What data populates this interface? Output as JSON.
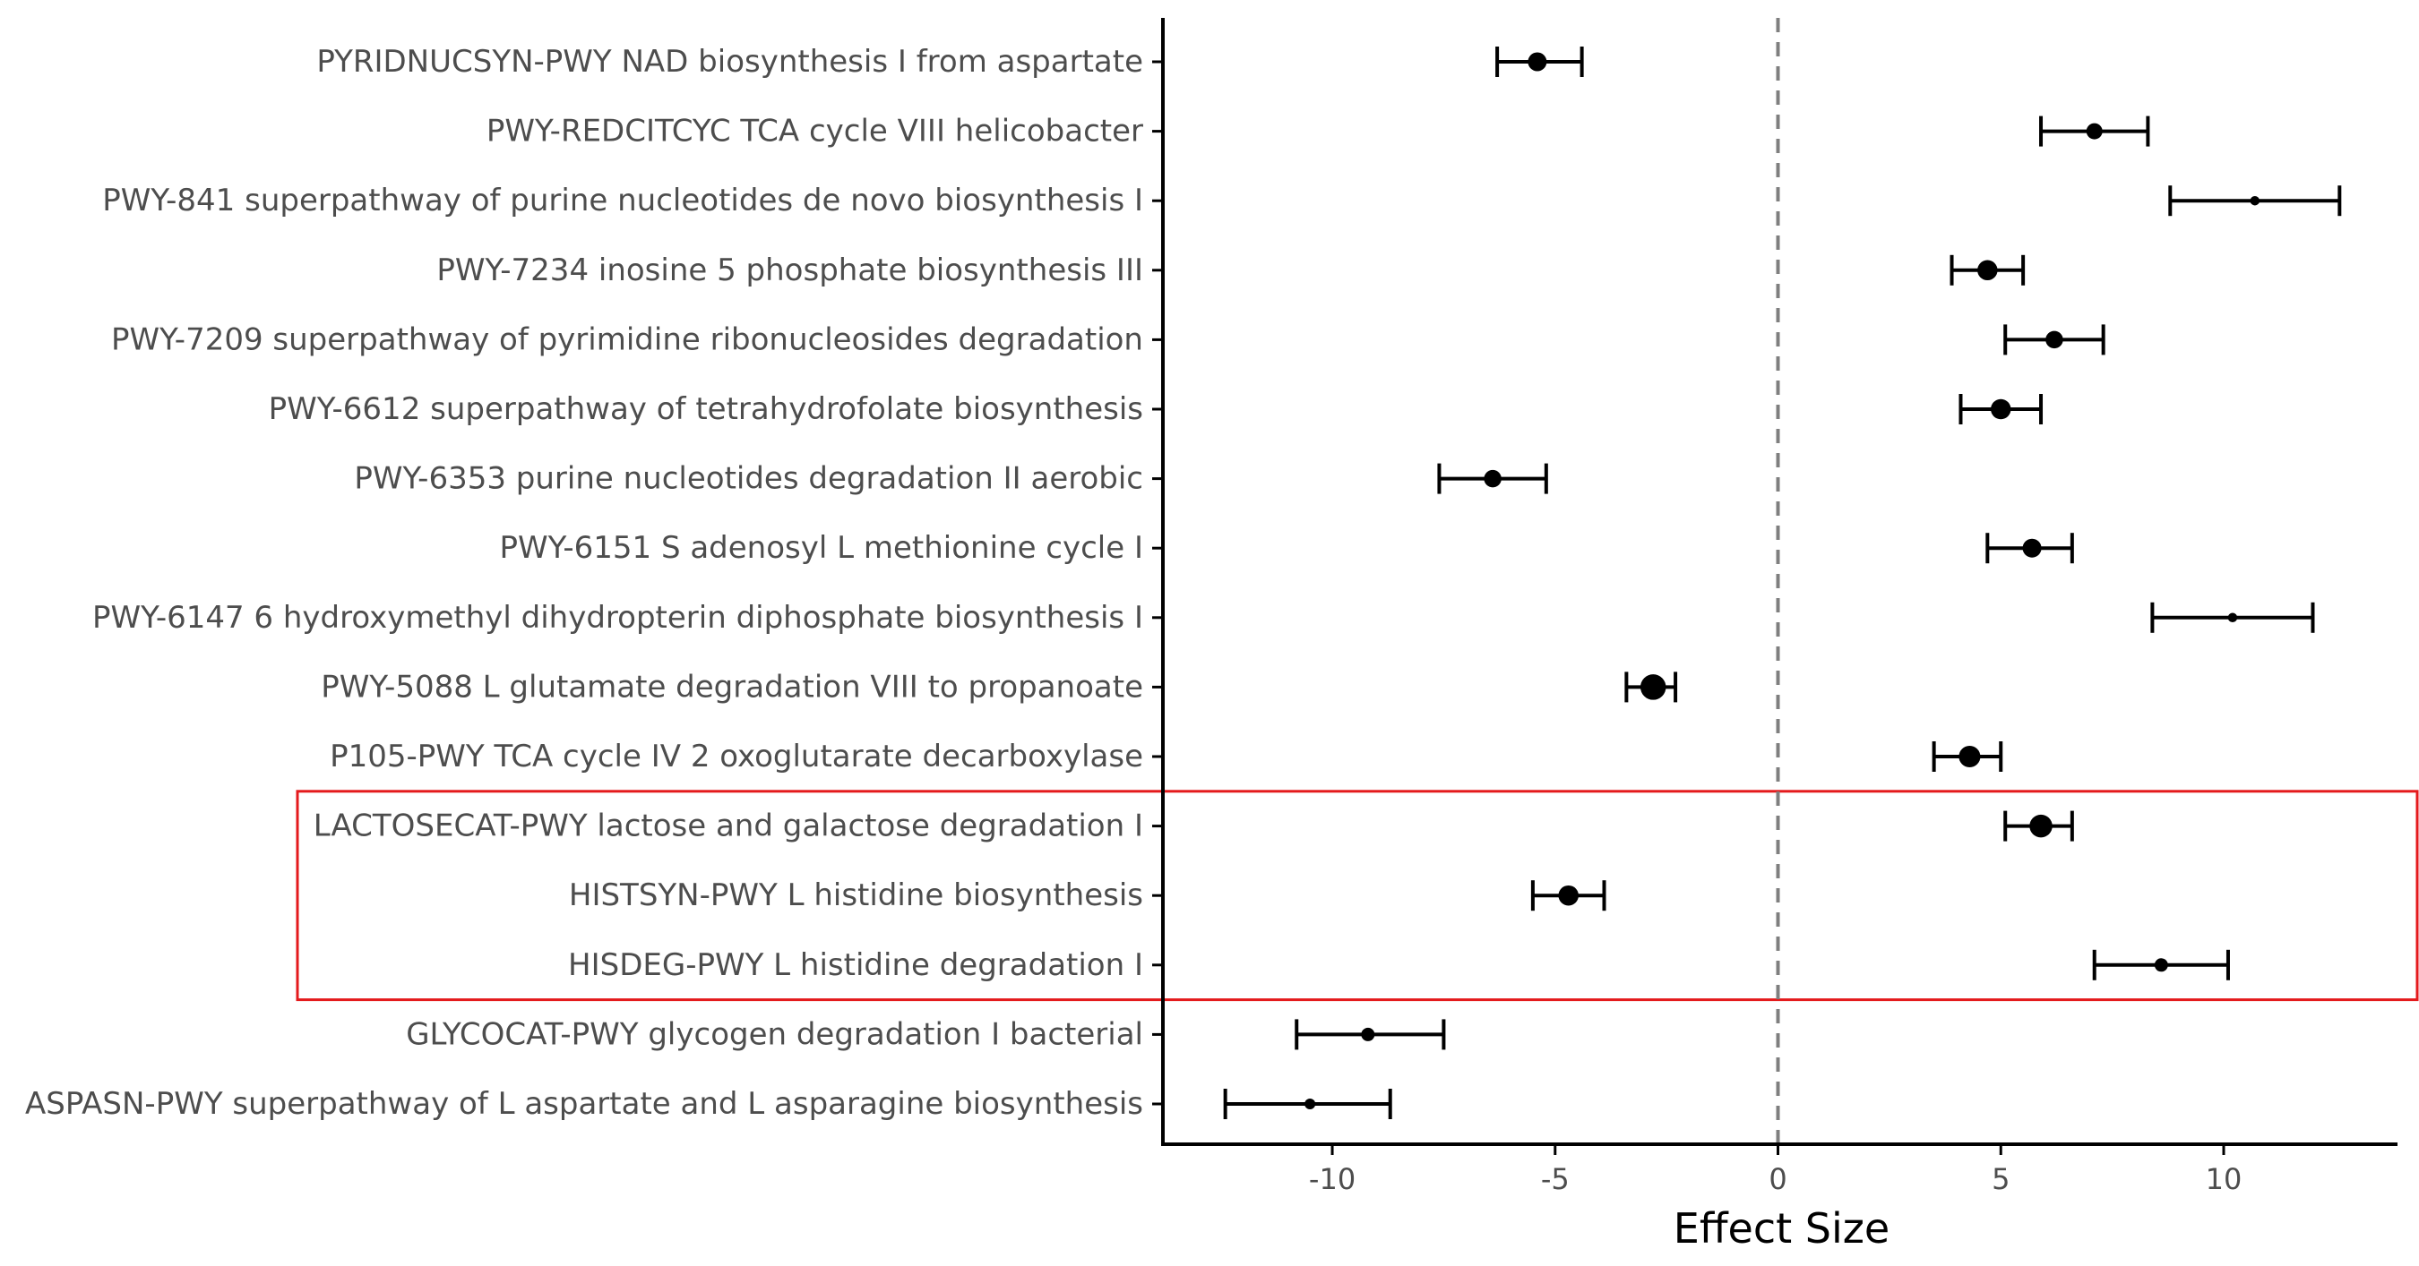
{
  "chart_data": {
    "type": "forest",
    "xlabel": "Effect Size",
    "ylabel": "",
    "xlim": [
      -13.8,
      13.9
    ],
    "x_ticks": [
      -10,
      -5,
      0,
      5,
      10
    ],
    "x_tick_labels": [
      "-10",
      "-5",
      "0",
      "5",
      "10"
    ],
    "reference_line_x": 0,
    "grid": false,
    "categories": [
      "PYRIDNUCSYN-PWY NAD biosynthesis I  from aspartate",
      "PWY-REDCITCYC TCA cycle VIII  helicobacter",
      "PWY-841 superpathway of purine nucleotides de novo biosynthesis I",
      "PWY-7234 inosine 5  phosphate biosynthesis III",
      "PWY-7209 superpathway of pyrimidine ribonucleosides degradation",
      "PWY-6612 superpathway of tetrahydrofolate biosynthesis",
      "PWY-6353 purine nucleotides degradation II  aerobic",
      "PWY-6151 S adenosyl L methionine cycle I",
      "PWY-6147 6 hydroxymethyl dihydropterin diphosphate biosynthesis I",
      "PWY-5088 L glutamate degradation VIII  to propanoate",
      "P105-PWY TCA cycle IV  2 oxoglutarate decarboxylase",
      "LACTOSECAT-PWY lactose and galactose degradation I",
      "HISTSYN-PWY L histidine biosynthesis",
      "HISDEG-PWY L histidine degradation I",
      "GLYCOCAT-PWY glycogen degradation I  bacterial",
      "ASPASN-PWY superpathway of L aspartate and L asparagine biosynthesis"
    ],
    "estimates": [
      -5.4,
      7.1,
      10.7,
      4.7,
      6.2,
      5.0,
      -6.4,
      5.7,
      10.2,
      -2.8,
      4.3,
      5.9,
      -4.7,
      8.6,
      -9.2,
      -10.5
    ],
    "lower": [
      -6.3,
      5.9,
      8.8,
      3.9,
      5.1,
      4.1,
      -7.6,
      4.7,
      8.4,
      -3.4,
      3.5,
      5.1,
      -5.5,
      7.1,
      -10.8,
      -12.4
    ],
    "upper": [
      -4.4,
      8.3,
      12.6,
      5.5,
      7.3,
      5.9,
      -5.2,
      6.6,
      12.0,
      -2.3,
      5.0,
      6.6,
      -3.9,
      10.1,
      -7.5,
      -8.7
    ],
    "point_size_relative": [
      1.0,
      0.8,
      0.3,
      1.1,
      0.9,
      1.1,
      0.9,
      1.0,
      0.3,
      1.5,
      1.2,
      1.3,
      1.1,
      0.6,
      0.6,
      0.4
    ],
    "highlight": {
      "categories": [
        "LACTOSECAT-PWY lactose and galactose degradation I",
        "HISTSYN-PWY L histidine biosynthesis",
        "HISDEG-PWY L histidine degradation I"
      ],
      "color": "#e41a1c"
    }
  },
  "colors": {
    "points": "#000000",
    "axis": "#000000",
    "text": "#4d4d4d",
    "reference_line": "#7f7f7f",
    "highlight_box": "#e41a1c"
  }
}
